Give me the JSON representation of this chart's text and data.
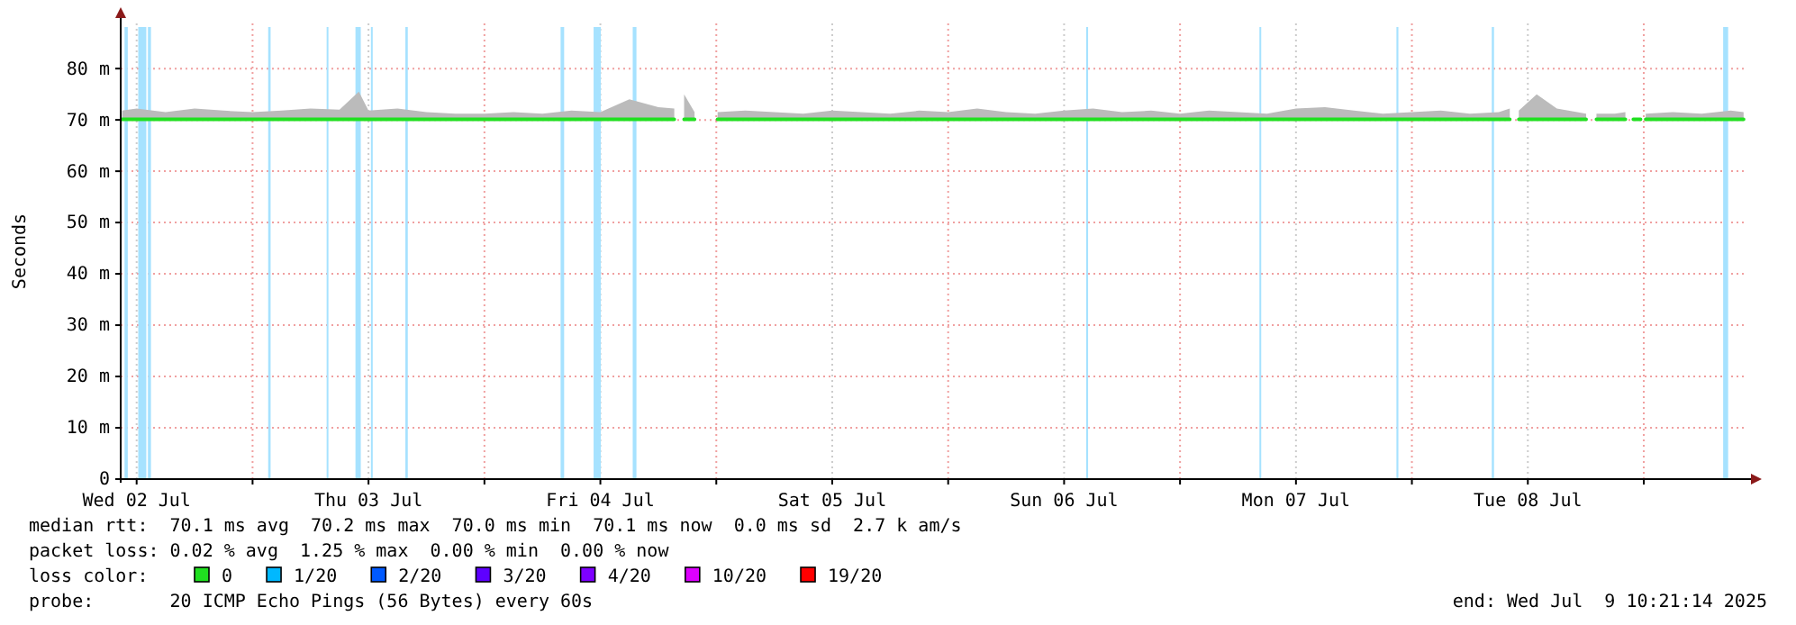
{
  "chart_data": {
    "type": "line",
    "ylabel": "Seconds",
    "xlim": [
      "2025-07-02T10:21",
      "2025-07-09T10:21"
    ],
    "xticks": [
      {
        "value": "2025-07-02T12:00",
        "label": "Wed 02 Jul"
      },
      {
        "value": "2025-07-03T00:00",
        "label": null
      },
      {
        "value": "2025-07-03T12:00",
        "label": "Thu 03 Jul"
      },
      {
        "value": "2025-07-04T00:00",
        "label": null
      },
      {
        "value": "2025-07-04T12:00",
        "label": "Fri 04 Jul"
      },
      {
        "value": "2025-07-05T00:00",
        "label": null
      },
      {
        "value": "2025-07-05T12:00",
        "label": "Sat 05 Jul"
      },
      {
        "value": "2025-07-06T00:00",
        "label": null
      },
      {
        "value": "2025-07-06T12:00",
        "label": "Sun 06 Jul"
      },
      {
        "value": "2025-07-07T00:00",
        "label": null
      },
      {
        "value": "2025-07-07T12:00",
        "label": "Mon 07 Jul"
      },
      {
        "value": "2025-07-08T00:00",
        "label": null
      },
      {
        "value": "2025-07-08T12:00",
        "label": "Tue 08 Jul"
      },
      {
        "value": "2025-07-09T00:00",
        "label": null
      }
    ],
    "ylim": [
      0,
      88.8
    ],
    "yticks": [
      {
        "value": 0,
        "label": "0"
      },
      {
        "value": 10,
        "label": "10 m"
      },
      {
        "value": 20,
        "label": "20 m"
      },
      {
        "value": 30,
        "label": "30 m"
      },
      {
        "value": 40,
        "label": "40 m"
      },
      {
        "value": 50,
        "label": "50 m"
      },
      {
        "value": 60,
        "label": "60 m"
      },
      {
        "value": 70,
        "label": "70 m"
      },
      {
        "value": 80,
        "label": "80 m"
      }
    ],
    "grid": true,
    "legend": "bottom",
    "legend_title": "loss color:",
    "series": [
      {
        "name": "0",
        "color": "#20e020",
        "x": [
          "2025-07-02T10:30",
          "2025-07-02T12:00",
          "2025-07-02T15:00",
          "2025-07-02T18:00",
          "2025-07-02T21:00",
          "2025-07-03T00:00",
          "2025-07-03T03:00",
          "2025-07-03T06:00",
          "2025-07-03T09:00",
          "2025-07-03T11:00",
          "2025-07-03T12:00",
          "2025-07-03T15:00",
          "2025-07-03T18:00",
          "2025-07-03T21:00",
          "2025-07-04T00:00",
          "2025-07-04T03:00",
          "2025-07-04T06:00",
          "2025-07-04T09:00",
          "2025-07-04T12:00",
          "2025-07-04T15:00",
          "2025-07-04T18:00",
          "2025-07-04T19:39",
          "2025-07-04T20:15",
          "2025-07-04T20:40",
          "2025-07-04T21:45",
          "2025-07-04T22:30",
          "2025-07-05T00:08",
          "2025-07-05T03:00",
          "2025-07-05T06:00",
          "2025-07-05T09:00",
          "2025-07-05T12:00",
          "2025-07-05T15:00",
          "2025-07-05T18:00",
          "2025-07-05T21:00",
          "2025-07-06T00:00",
          "2025-07-06T03:00",
          "2025-07-06T06:00",
          "2025-07-06T09:00",
          "2025-07-06T12:00",
          "2025-07-06T15:00",
          "2025-07-06T18:00",
          "2025-07-06T21:00",
          "2025-07-07T00:00",
          "2025-07-07T03:00",
          "2025-07-07T06:00",
          "2025-07-07T09:00",
          "2025-07-07T12:00",
          "2025-07-07T15:00",
          "2025-07-07T18:00",
          "2025-07-07T21:00",
          "2025-07-08T00:00",
          "2025-07-08T03:00",
          "2025-07-08T06:00",
          "2025-07-08T09:00",
          "2025-07-08T10:08",
          "2025-07-08T10:30",
          "2025-07-08T11:04",
          "2025-07-08T12:55",
          "2025-07-08T15:00",
          "2025-07-08T18:02",
          "2025-07-08T18:30",
          "2025-07-08T19:06",
          "2025-07-08T21:00",
          "2025-07-08T22:06",
          "2025-07-08T22:30",
          "2025-07-08T22:55",
          "2025-07-08T23:40",
          "2025-07-08T23:45",
          "2025-07-09T00:12",
          "2025-07-09T03:00",
          "2025-07-09T06:00",
          "2025-07-09T09:00",
          "2025-07-09T10:20"
        ],
        "values": [
          70.1,
          70.1,
          70.1,
          70.1,
          70.1,
          70.1,
          70.1,
          70.1,
          70.1,
          70.1,
          70.1,
          70.1,
          70.1,
          70.1,
          70.1,
          70.1,
          70.1,
          70.1,
          70.1,
          70.1,
          70.1,
          70.1,
          null,
          70.1,
          70.1,
          null,
          70.1,
          70.1,
          70.1,
          70.1,
          70.1,
          70.1,
          70.1,
          70.1,
          70.1,
          70.1,
          70.1,
          70.1,
          70.1,
          70.1,
          70.1,
          70.1,
          70.1,
          70.1,
          70.1,
          70.1,
          70.1,
          70.1,
          70.1,
          70.1,
          70.1,
          70.1,
          70.1,
          70.1,
          70.1,
          null,
          70.1,
          70.1,
          70.1,
          70.1,
          null,
          70.1,
          70.1,
          70.1,
          null,
          70.1,
          70.1,
          null,
          70.1,
          70.1,
          70.1,
          70.1,
          70.1
        ],
        "lower": [
          70,
          70,
          70,
          70,
          70,
          70,
          70,
          70,
          70,
          70,
          70,
          70,
          70,
          70,
          70,
          70,
          70,
          70,
          70,
          70,
          70,
          70,
          null,
          70,
          70,
          null,
          70,
          70,
          70,
          70,
          70,
          70,
          70,
          70,
          70,
          70,
          70,
          70,
          70,
          70,
          70,
          70,
          70,
          70,
          70,
          70,
          70,
          70,
          70,
          70,
          70,
          70,
          70,
          70,
          70,
          null,
          70,
          70,
          70,
          70,
          null,
          70,
          70,
          70,
          null,
          null,
          null,
          null,
          70,
          70,
          70,
          70,
          70
        ],
        "upper": [
          71.8,
          72.2,
          71.5,
          72.2,
          71.8,
          71.5,
          71.8,
          72.2,
          72,
          75.5,
          71.8,
          72.2,
          71.5,
          71.2,
          71.2,
          71.5,
          71.2,
          71.8,
          71.5,
          74,
          72.5,
          72.2,
          null,
          75,
          71.5,
          null,
          71.5,
          71.8,
          71.5,
          71.2,
          71.8,
          71.5,
          71.2,
          71.8,
          71.5,
          72.2,
          71.5,
          71.2,
          71.8,
          72.2,
          71.5,
          71.8,
          71.2,
          71.8,
          71.5,
          71.2,
          72.2,
          72.5,
          71.8,
          71.2,
          71.5,
          71.8,
          71.2,
          71.5,
          72.2,
          null,
          71.8,
          75,
          72.2,
          71.2,
          null,
          71.2,
          71.2,
          71.5,
          null,
          null,
          null,
          null,
          71.2,
          71.5,
          71.2,
          71.8,
          71.5
        ]
      },
      {
        "name": "1/20",
        "color": "#00b8ff"
      },
      {
        "name": "2/20",
        "color": "#0059ff"
      },
      {
        "name": "3/20",
        "color": "#5e00ff"
      },
      {
        "name": "4/20",
        "color": "#7e00ff"
      },
      {
        "name": "10/20",
        "color": "#dd00ff"
      },
      {
        "name": "19/20",
        "color": "#ff0000"
      }
    ],
    "bands": [
      {
        "axis": "x",
        "from": "2025-07-02T10:45",
        "to": "2025-07-02T11:05",
        "color": "#a6e2ff"
      },
      {
        "axis": "x",
        "from": "2025-07-02T12:10",
        "to": "2025-07-02T13:00",
        "color": "#a6e2ff"
      },
      {
        "axis": "x",
        "from": "2025-07-02T13:10",
        "to": "2025-07-02T13:29",
        "color": "#a6e2ff"
      },
      {
        "axis": "x",
        "from": "2025-07-03T01:37",
        "to": "2025-07-03T01:52",
        "color": "#a6e2ff"
      },
      {
        "axis": "x",
        "from": "2025-07-03T07:40",
        "to": "2025-07-03T07:50",
        "color": "#a6e2ff"
      },
      {
        "axis": "x",
        "from": "2025-07-03T10:39",
        "to": "2025-07-03T11:12",
        "color": "#a6e2ff"
      },
      {
        "axis": "x",
        "from": "2025-07-03T12:15",
        "to": "2025-07-03T12:20",
        "color": "#a6e2ff"
      },
      {
        "axis": "x",
        "from": "2025-07-03T15:49",
        "to": "2025-07-03T16:04",
        "color": "#a6e2ff"
      },
      {
        "axis": "x",
        "from": "2025-07-04T07:53",
        "to": "2025-07-04T08:15",
        "color": "#a6e2ff"
      },
      {
        "axis": "x",
        "from": "2025-07-04T11:18",
        "to": "2025-07-04T12:03",
        "color": "#a6e2ff"
      },
      {
        "axis": "x",
        "from": "2025-07-04T15:21",
        "to": "2025-07-04T15:44",
        "color": "#a6e2ff"
      },
      {
        "axis": "x",
        "from": "2025-07-06T14:17",
        "to": "2025-07-06T14:29",
        "color": "#a6e2ff"
      },
      {
        "axis": "x",
        "from": "2025-07-07T08:13",
        "to": "2025-07-07T08:24",
        "color": "#a6e2ff"
      },
      {
        "axis": "x",
        "from": "2025-07-07T22:24",
        "to": "2025-07-07T22:36",
        "color": "#a6e2ff"
      },
      {
        "axis": "x",
        "from": "2025-07-08T08:16",
        "to": "2025-07-08T08:30",
        "color": "#a6e2ff"
      },
      {
        "axis": "x",
        "from": "2025-07-09T08:13",
        "to": "2025-07-09T08:44",
        "color": "#a6e2ff"
      }
    ],
    "annotations": [
      "median rtt:  70.1 ms avg  70.2 ms max  70.0 ms min  70.1 ms now  0.0 ms sd  2.7 k am/s",
      "packet loss: 0.02 % avg  1.25 % max  0.00 % min  0.00 % now",
      "probe:       20 ICMP Echo Pings (56 Bytes) every 60s",
      "end: Wed Jul  9 10:21:14 2025"
    ]
  }
}
